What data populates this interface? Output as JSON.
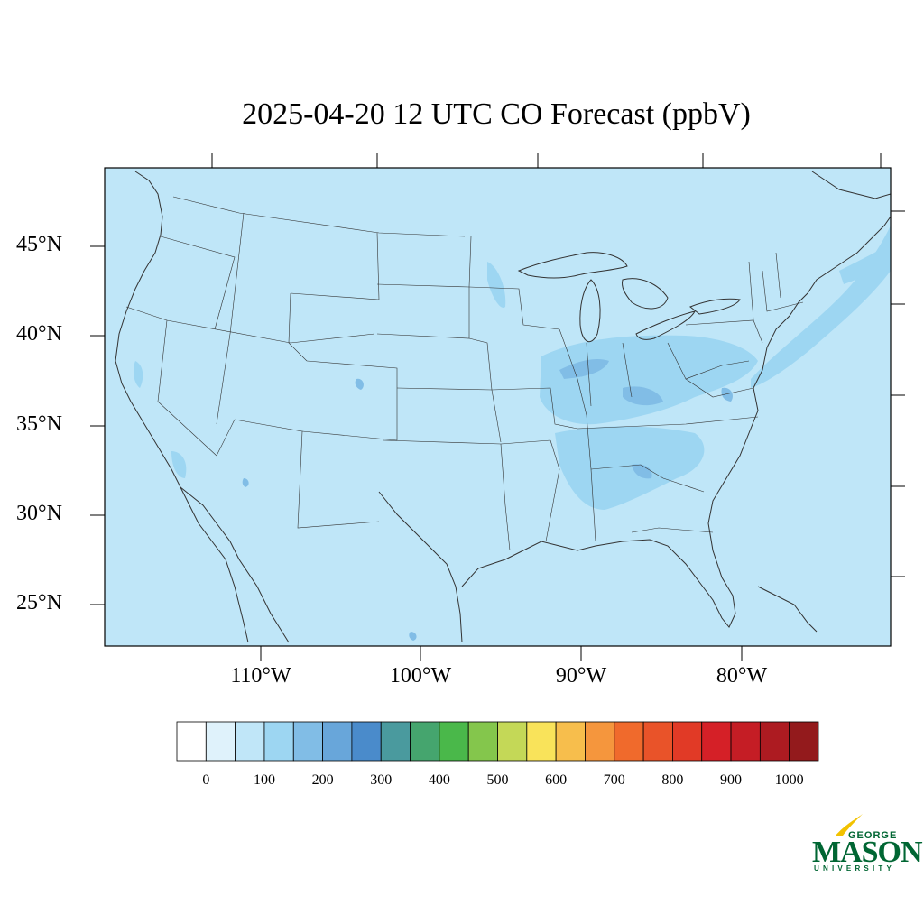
{
  "title": "2025-04-20 12 UTC CO Forecast (ppbV)",
  "lat_labels": [
    "45°N",
    "40°N",
    "35°N",
    "30°N",
    "25°N"
  ],
  "lon_labels": [
    "110°W",
    "100°W",
    "90°W",
    "80°W"
  ],
  "colorbar": {
    "tick_labels": [
      "0",
      "100",
      "200",
      "300",
      "400",
      "500",
      "600",
      "700",
      "800",
      "900",
      "1000"
    ],
    "colors": [
      "#ffffff",
      "#dff2fb",
      "#c0e6f8",
      "#9dd6f2",
      "#81bde6",
      "#68a6da",
      "#4a8bcb",
      "#4a9a9e",
      "#45a56e",
      "#4ab84a",
      "#84c64c",
      "#c4d857",
      "#f9e35a",
      "#f7be4c",
      "#f5963d",
      "#f06a2c",
      "#e95329",
      "#e13a26",
      "#d52027",
      "#c51d25",
      "#ad1b21",
      "#931a1c"
    ]
  },
  "map": {
    "ocean_color": "#bfe6f8",
    "land_color": "#bfe6f8",
    "plume_color": "#9dd6f2",
    "plume_dark_color": "#81bde6",
    "hotspot_color": "#68a6da",
    "line_color": "#333333"
  },
  "logo": {
    "line1": "GEORGE",
    "line2": "MASON",
    "line3": "UNIVERSITY",
    "color": "#006633",
    "accent": "#f2c200"
  }
}
